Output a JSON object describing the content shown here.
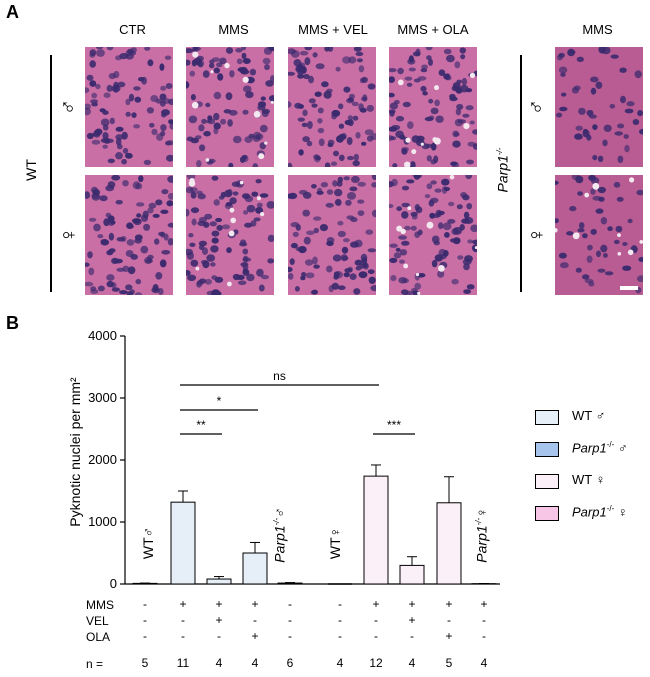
{
  "panel_a": {
    "letter": "A",
    "columns": [
      "CTR",
      "MMS",
      "MMS + VEL",
      "MMS + OLA"
    ],
    "side_column": "MMS",
    "row_group_wt": "WT",
    "row_group_parp": "Parp1",
    "parp_sup": "-/-",
    "male_symbol": "♂",
    "female_symbol": "♀",
    "stain_colors": {
      "background": "#c96fa6",
      "nuclei": "#3b2a6e",
      "pale": "#e2b9d4"
    }
  },
  "panel_b": {
    "letter": "B",
    "ylabel": "Pyknotic nuclei per mm²",
    "bar_texts": {
      "wt_male": "WT♂",
      "parp_male": "Parp1",
      "parp_male_sup": "-/-",
      "parp_male_sym": "♂",
      "wt_female": "WT♀",
      "parp_female": "Parp1",
      "parp_female_sup": "-/-",
      "parp_female_sym": "♀"
    },
    "legend": [
      {
        "label": "WT ♂",
        "color": "#e6eef8"
      },
      {
        "label": "Parp1",
        "sup": "-/-",
        "sym": " ♂",
        "color": "#a7c5ec"
      },
      {
        "label": "WT ♀",
        "color": "#fbeff8"
      },
      {
        "label": "Parp1",
        "sup": "-/-",
        "sym": " ♀",
        "color": "#f7c6e6"
      }
    ],
    "table": {
      "row_labels": [
        "MMS",
        "VEL",
        "OLA",
        "n ="
      ],
      "mms": [
        "-",
        "+",
        "+",
        "+",
        "-",
        "-",
        "+",
        "+",
        "+",
        "+"
      ],
      "vel": [
        "-",
        "-",
        "+",
        "-",
        "-",
        "-",
        "-",
        "+",
        "-",
        "-"
      ],
      "ola": [
        "-",
        "-",
        "-",
        "+",
        "-",
        "-",
        "-",
        "-",
        "+",
        "-"
      ],
      "n": [
        "5",
        "11",
        "4",
        "4",
        "6",
        "4",
        "12",
        "4",
        "5",
        "4"
      ]
    },
    "significance": [
      {
        "label": "ns",
        "from": 1,
        "to": 6
      },
      {
        "label": "*",
        "from": 1,
        "to": 3
      },
      {
        "label": "**",
        "from": 1,
        "to": 2
      },
      {
        "label": "***",
        "from": 6,
        "to": 7
      }
    ]
  },
  "chart_data": {
    "type": "bar",
    "ylabel": "Pyknotic nuclei per mm²",
    "ylim": [
      0,
      4000
    ],
    "yticks": [
      0,
      1000,
      2000,
      3000,
      4000
    ],
    "series": [
      {
        "name": "WT ♂",
        "color": "#e6eef8",
        "positions": [
          0,
          1,
          2,
          3
        ],
        "values": [
          10,
          1320,
          80,
          500
        ],
        "errors": [
          5,
          180,
          40,
          170
        ]
      },
      {
        "name": "Parp1-/- ♂",
        "color": "#a7c5ec",
        "positions": [
          4
        ],
        "values": [
          15
        ],
        "errors": [
          8
        ]
      },
      {
        "name": "WT ♀",
        "color": "#fbeff8",
        "positions": [
          5,
          6,
          7,
          8
        ],
        "values": [
          0,
          1740,
          300,
          1310
        ],
        "errors": [
          0,
          180,
          140,
          420
        ]
      },
      {
        "name": "Parp1-/- ♀",
        "color": "#f7c6e6",
        "positions": [
          9
        ],
        "values": [
          5
        ],
        "errors": [
          3
        ]
      }
    ]
  }
}
